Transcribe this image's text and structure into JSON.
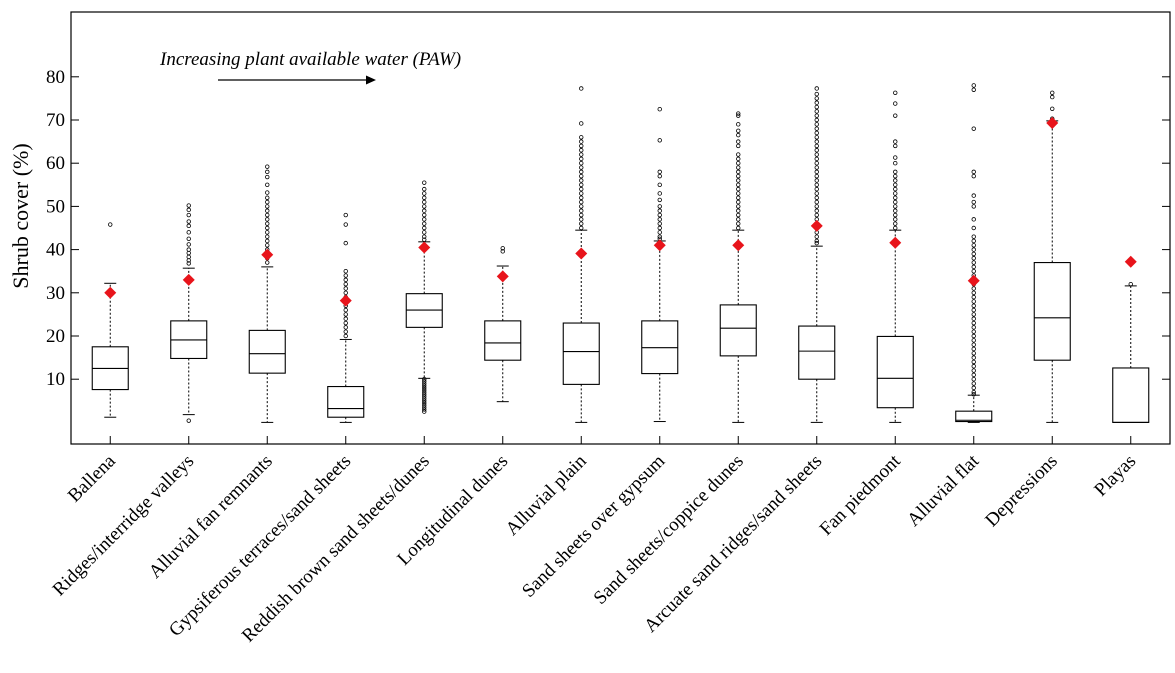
{
  "chart_data": {
    "type": "box",
    "title": "",
    "xlabel": "",
    "ylabel": "Shrub cover (%)",
    "ylim": [
      -5,
      95
    ],
    "yticks": [
      10,
      20,
      30,
      40,
      50,
      60,
      70,
      80
    ],
    "grid": false,
    "mean_color": "#e8141b",
    "annotation": {
      "text": "Increasing plant available water (PAW)",
      "arrow": "right"
    },
    "categories": [
      "Ballena",
      "Ridges/interridge valleys",
      "Alluvial fan remnants",
      "Gypsiferous terraces/sand sheets",
      "Reddish brown sand sheets/dunes",
      "Longitudinal dunes",
      "Alluvial plain",
      "Sand sheets over gypsum",
      "Sand sheets/coppice dunes",
      "Arcuate sand ridges/sand sheets",
      "Fan piedmont",
      "Alluvial flat",
      "Depressions",
      "Playas"
    ],
    "boxes": [
      {
        "q1": 7.6,
        "median": 12.5,
        "q3": 17.5,
        "whisker_low": 1.2,
        "whisker_high": 32.2,
        "mean": 30.0,
        "outliers": [
          45.8
        ]
      },
      {
        "q1": 14.8,
        "median": 19.1,
        "q3": 23.5,
        "whisker_low": 1.8,
        "whisker_high": 35.7,
        "mean": 33.0,
        "outliers": [
          0.4,
          36.8,
          37.5,
          38.3,
          39.2,
          40.0,
          41.2,
          42.5,
          44.0,
          45.5,
          46.5,
          48.0,
          49.2,
          50.2
        ]
      },
      {
        "q1": 11.4,
        "median": 15.9,
        "q3": 21.3,
        "whisker_low": 0,
        "whisker_high": 36.0,
        "mean": 38.8,
        "outliers": [
          37.0,
          38.0,
          39.0,
          40.0,
          41.0,
          42.0,
          43.0,
          44.0,
          45.0,
          46.0,
          47.0,
          48.0,
          49.0,
          50.0,
          51.0,
          52.0,
          53.2,
          55.0,
          56.8,
          58.0,
          59.2
        ]
      },
      {
        "q1": 1.2,
        "median": 3.2,
        "q3": 8.3,
        "whisker_low": 0,
        "whisker_high": 19.2,
        "mean": 28.2,
        "outliers": [
          20.0,
          21.0,
          22.0,
          23.0,
          24.0,
          25.0,
          26.0,
          27.0,
          28.0,
          29.0,
          30.0,
          31.0,
          32.0,
          33.0,
          34.0,
          35.0,
          41.5,
          45.8,
          48.0
        ]
      },
      {
        "q1": 22.0,
        "median": 26.0,
        "q3": 29.8,
        "whisker_low": 10.2,
        "whisker_high": 41.8,
        "mean": 40.5,
        "outliers": [
          2.5,
          3.0,
          3.5,
          4.0,
          4.5,
          5.0,
          5.5,
          6.0,
          6.5,
          7.0,
          7.5,
          8.0,
          8.5,
          9.0,
          9.5,
          10.0,
          42.3,
          43.0,
          44.0,
          45.0,
          46.0,
          47.0,
          48.0,
          49.0,
          50.0,
          51.0,
          52.0,
          53.0,
          54.0,
          55.5
        ]
      },
      {
        "q1": 14.4,
        "median": 18.4,
        "q3": 23.5,
        "whisker_low": 4.8,
        "whisker_high": 36.2,
        "mean": 33.8,
        "outliers": [
          39.6,
          40.3
        ]
      },
      {
        "q1": 8.8,
        "median": 16.4,
        "q3": 23.0,
        "whisker_low": 0,
        "whisker_high": 44.5,
        "mean": 39.1,
        "outliers": [
          45.0,
          46.0,
          47.0,
          48.0,
          49.0,
          50.0,
          51.0,
          52.0,
          53.0,
          54.0,
          55.0,
          56.0,
          57.0,
          58.0,
          59.0,
          60.0,
          61.0,
          62.0,
          63.0,
          64.0,
          65.0,
          66.0,
          69.2,
          77.3
        ]
      },
      {
        "q1": 11.3,
        "median": 17.3,
        "q3": 23.5,
        "whisker_low": 0.2,
        "whisker_high": 42.0,
        "mean": 41.0,
        "outliers": [
          42.5,
          43.0,
          44.0,
          45.0,
          46.0,
          47.0,
          48.0,
          49.0,
          50.0,
          51.5,
          53.0,
          55.0,
          57.0,
          58.0,
          65.3,
          72.5
        ]
      },
      {
        "q1": 15.4,
        "median": 21.8,
        "q3": 27.2,
        "whisker_low": 0,
        "whisker_high": 44.5,
        "mean": 41.0,
        "outliers": [
          45.0,
          46.0,
          47.0,
          48.0,
          49.0,
          50.0,
          51.0,
          52.0,
          53.0,
          54.0,
          55.0,
          56.0,
          57.0,
          58.0,
          59.0,
          60.0,
          61.0,
          62.0,
          64.0,
          65.0,
          66.5,
          67.5,
          69.0,
          71.0,
          71.5
        ]
      },
      {
        "q1": 10.0,
        "median": 16.5,
        "q3": 22.3,
        "whisker_low": 0,
        "whisker_high": 40.8,
        "mean": 45.5,
        "outliers": [
          41.5,
          42.0,
          43.0,
          44.0,
          45.0,
          46.0,
          47.0,
          48.0,
          49.0,
          50.0,
          51.0,
          52.0,
          53.0,
          54.0,
          55.0,
          56.0,
          57.0,
          58.0,
          59.0,
          60.0,
          61.0,
          62.0,
          63.0,
          64.0,
          65.0,
          66.0,
          67.0,
          68.0,
          69.0,
          70.0,
          71.0,
          72.0,
          73.0,
          74.0,
          75.0,
          76.0,
          77.3
        ]
      },
      {
        "q1": 3.4,
        "median": 10.2,
        "q3": 19.9,
        "whisker_low": 0,
        "whisker_high": 44.5,
        "mean": 41.6,
        "outliers": [
          45.0,
          46.0,
          47.0,
          48.0,
          49.0,
          50.0,
          51.0,
          52.0,
          53.0,
          54.0,
          55.0,
          56.0,
          57.0,
          58.0,
          60.0,
          61.3,
          64.0,
          65.0,
          71.0,
          73.8,
          76.3
        ]
      },
      {
        "q1": 0.2,
        "median": 0.5,
        "q3": 2.6,
        "whisker_low": 0,
        "whisker_high": 6.3,
        "mean": 32.8,
        "outliers": [
          6.5,
          7.0,
          8.0,
          9.0,
          10.0,
          11.0,
          12.0,
          13.0,
          14.0,
          15.0,
          16.0,
          17.0,
          18.0,
          19.0,
          20.0,
          21.0,
          22.0,
          23.0,
          24.0,
          25.0,
          26.0,
          27.0,
          28.0,
          29.0,
          30.0,
          31.0,
          32.0,
          33.0,
          34.0,
          35.0,
          36.0,
          37.0,
          38.0,
          39.0,
          40.0,
          41.0,
          42.0,
          43.0,
          45.0,
          47.0,
          50.0,
          51.0,
          52.5,
          57.0,
          58.0,
          68.0,
          77.0,
          78.0
        ]
      },
      {
        "q1": 14.4,
        "median": 24.2,
        "q3": 37.0,
        "whisker_low": 0,
        "whisker_high": 69.8,
        "mean": 69.3,
        "outliers": [
          70.3,
          72.6,
          75.3,
          76.3
        ]
      },
      {
        "q1": 0,
        "median": 0,
        "q3": 12.6,
        "whisker_low": 0,
        "whisker_high": 31.6,
        "mean": 37.2,
        "outliers": [
          32.0
        ]
      }
    ]
  }
}
